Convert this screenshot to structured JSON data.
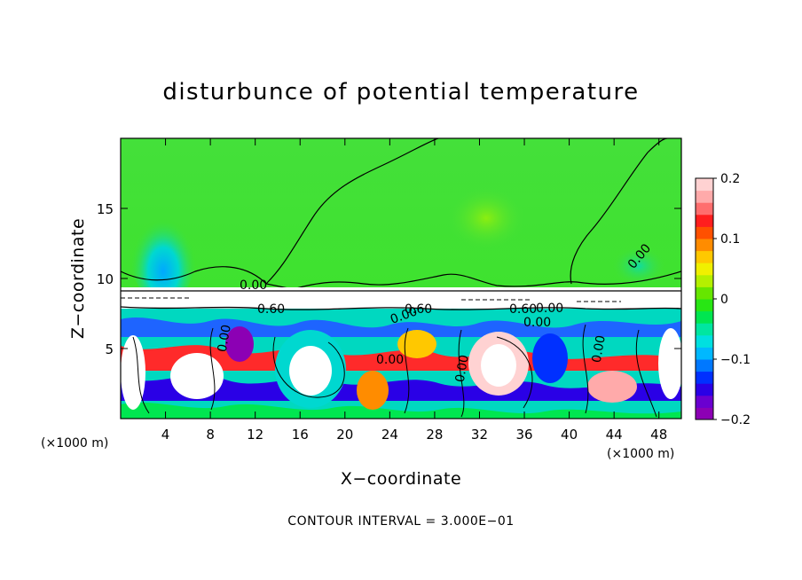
{
  "chart_data": {
    "type": "heatmap",
    "title": "disturbunce of potential temperature",
    "xlabel": "X−coordinate",
    "ylabel": "Z−coordinate",
    "x_unit": "(×1000 m)",
    "x_unit_right": "(×1000 m)",
    "xlim": [
      0,
      50
    ],
    "ylim": [
      0,
      20
    ],
    "x_ticks": [
      4,
      8,
      12,
      16,
      20,
      24,
      28,
      32,
      36,
      40,
      44,
      48
    ],
    "y_ticks": [
      5,
      10,
      15
    ],
    "colorbar": {
      "range": [
        -0.2,
        0.2
      ],
      "tick_values": [
        0.2,
        0.1,
        0,
        -0.1,
        -0.2
      ],
      "tick_labels": [
        "0.2",
        "0.1",
        "0",
        "−0.1",
        "−0.2"
      ],
      "colors": [
        "#8c00b4",
        "#6a00d0",
        "#2a00e6",
        "#0030ff",
        "#0078ff",
        "#00b8ff",
        "#00e0e0",
        "#00e6a0",
        "#00e650",
        "#28e614",
        "#66e600",
        "#b4f000",
        "#f0f000",
        "#ffc800",
        "#ff8c00",
        "#ff5000",
        "#ff1e1e",
        "#ff6e6e",
        "#ffaaaa",
        "#ffd2d2"
      ]
    },
    "contour_labels": [
      "0.00",
      "0.00",
      "0.00",
      "0.00",
      "0.00",
      "0.00",
      "0.00",
      "0.00",
      "0.00",
      "0.60",
      "0.60",
      "0.60"
    ],
    "contour_interval_text": "CONTOUR INTERVAL = 3.000E−01"
  }
}
